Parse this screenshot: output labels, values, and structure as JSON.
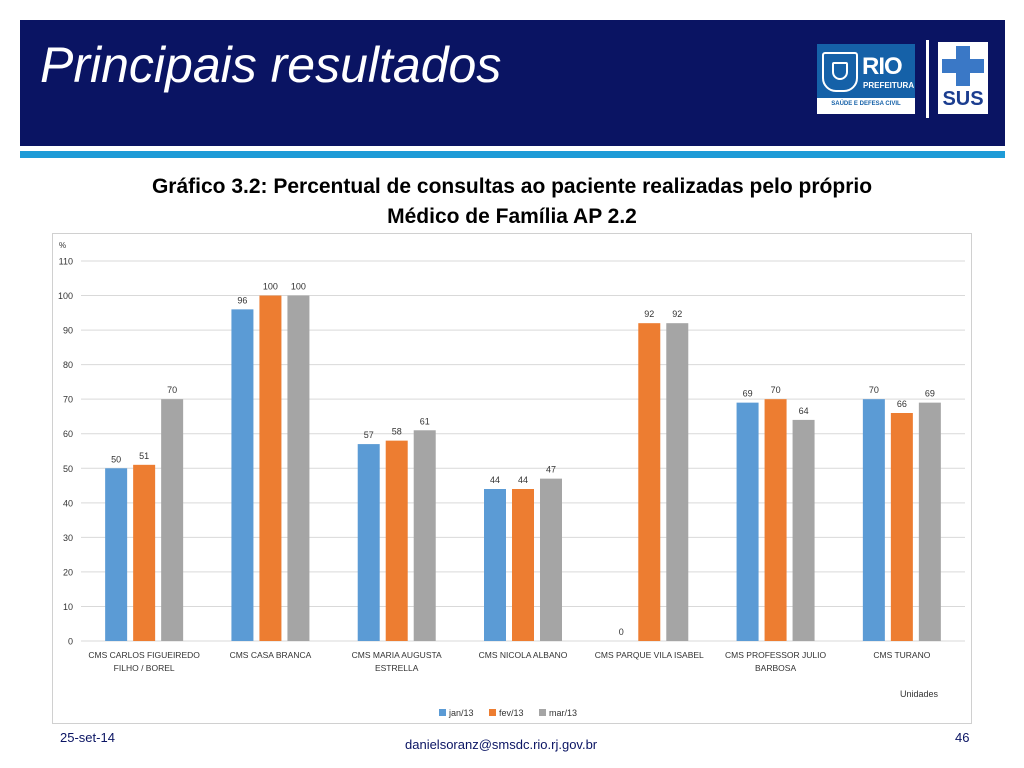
{
  "slide": {
    "title": "Principais resultados",
    "footer_date": "25-set-14",
    "footer_email": "danielsoranz@smsdc.rio.rj.gov.br",
    "page_number": "46"
  },
  "logos": {
    "rio_word": "RIO",
    "rio_sub": "PREFEITURA",
    "rio_band": "SAÚDE E DEFESA CIVIL",
    "sus_word": "SUS"
  },
  "colors": {
    "header_bg": "#0a1463",
    "accent_stripe": "#1e9bd7",
    "jan": "#5b9bd5",
    "fev": "#ed7d31",
    "mar": "#a5a5a5"
  },
  "chart_title_lines": [
    "Gráfico 3.2: Percentual de consultas ao paciente realizadas pelo próprio",
    "Médico de Família AP 2.2"
  ],
  "chart_data": {
    "type": "bar",
    "ylabel": "%",
    "xlabel": "Unidades",
    "ylim": [
      0,
      110
    ],
    "yticks": [
      0,
      10,
      20,
      30,
      40,
      50,
      60,
      70,
      80,
      90,
      100,
      110
    ],
    "grid": true,
    "legend_position": "bottom",
    "categories": [
      [
        "CMS CARLOS FIGUEIREDO",
        "FILHO / BOREL"
      ],
      [
        "CMS CASA BRANCA"
      ],
      [
        "CMS MARIA AUGUSTA",
        "ESTRELLA"
      ],
      [
        "CMS NICOLA ALBANO"
      ],
      [
        "CMS PARQUE VILA ISABEL"
      ],
      [
        "CMS PROFESSOR JULIO",
        "BARBOSA"
      ],
      [
        "CMS TURANO"
      ]
    ],
    "series": [
      {
        "name": "jan/13",
        "color": "#5b9bd5",
        "values": [
          50,
          96,
          57,
          44,
          0,
          69,
          70
        ]
      },
      {
        "name": "fev/13",
        "color": "#ed7d31",
        "values": [
          51,
          100,
          58,
          44,
          92,
          70,
          66
        ]
      },
      {
        "name": "mar/13",
        "color": "#a5a5a5",
        "values": [
          70,
          100,
          61,
          47,
          92,
          64,
          69
        ]
      }
    ]
  }
}
